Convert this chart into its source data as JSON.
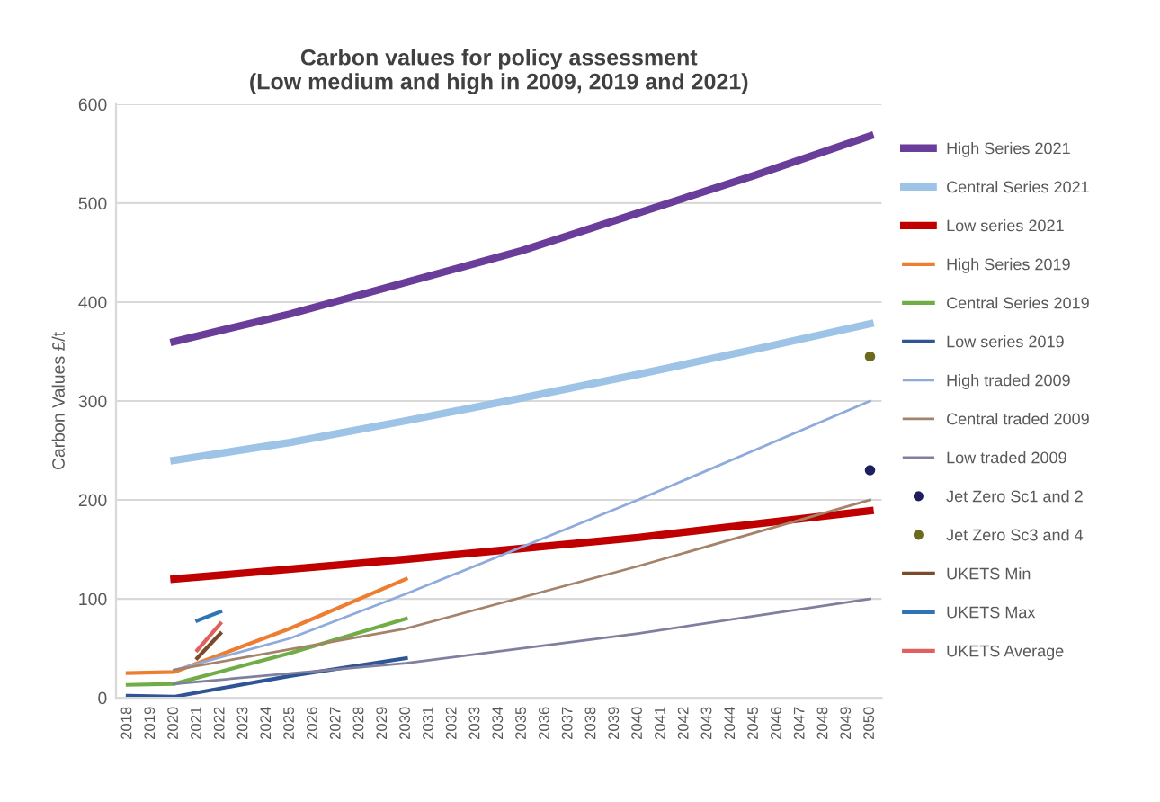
{
  "chart_data": {
    "type": "line",
    "title": "Carbon values for policy assessment\n(Low medium and high in 2009, 2019 and 2021)",
    "ylabel": "Carbon Values £/t",
    "xlim": [
      2017.5,
      2050.5
    ],
    "xticks": [
      2018,
      2019,
      2020,
      2021,
      2022,
      2023,
      2024,
      2025,
      2026,
      2027,
      2028,
      2029,
      2030,
      2031,
      2032,
      2033,
      2034,
      2035,
      2036,
      2037,
      2038,
      2039,
      2040,
      2041,
      2042,
      2043,
      2044,
      2045,
      2046,
      2047,
      2048,
      2049,
      2050
    ],
    "ylim": [
      0,
      600
    ],
    "yticks": [
      0,
      100,
      200,
      300,
      400,
      500,
      600
    ],
    "grid": "y",
    "legend": "right",
    "marker": "none",
    "line_style": "solid",
    "series": [
      {
        "name": "High Series 2021",
        "color": "#6a3d9a",
        "x": [
          2020,
          2025,
          2030,
          2035,
          2040,
          2045,
          2050
        ],
        "values": [
          360,
          388,
          420,
          452,
          490,
          528,
          568
        ]
      },
      {
        "name": "Central Series 2021",
        "color": "#9dc3e6",
        "x": [
          2020,
          2025,
          2030,
          2035,
          2040,
          2045,
          2050
        ],
        "values": [
          240,
          258,
          280,
          303,
          327,
          352,
          378
        ]
      },
      {
        "name": "Low series 2021",
        "color": "#c00000",
        "x": [
          2020,
          2030,
          2040,
          2050
        ],
        "values": [
          120,
          140,
          162,
          189
        ]
      },
      {
        "name": "High Series 2019",
        "color": "#ed7d31",
        "x": [
          2018,
          2020,
          2025,
          2030
        ],
        "values": [
          25,
          26,
          70,
          120
        ]
      },
      {
        "name": "Central Series 2019",
        "color": "#70ad47",
        "x": [
          2018,
          2020,
          2025,
          2030
        ],
        "values": [
          13,
          14,
          45,
          80
        ]
      },
      {
        "name": "Low series 2019",
        "color": "#2f5597",
        "x": [
          2018,
          2020,
          2025,
          2030
        ],
        "values": [
          2,
          1,
          22,
          40
        ]
      },
      {
        "name": "High traded 2009",
        "color": "#8faadc",
        "x": [
          2020,
          2025,
          2030,
          2040,
          2050
        ],
        "values": [
          28,
          60,
          105,
          200,
          300
        ]
      },
      {
        "name": "Central traded 2009",
        "color": "#a5826a",
        "x": [
          2020,
          2030,
          2040,
          2050
        ],
        "values": [
          28,
          70,
          133,
          200
        ]
      },
      {
        "name": "Low traded 2009",
        "color": "#7f7f9f",
        "x": [
          2020,
          2030,
          2040,
          2050
        ],
        "values": [
          14,
          35,
          65,
          100
        ]
      },
      {
        "name": "Jet Zero Sc1 and 2",
        "type": "scatter",
        "marker": "circle",
        "color": "#1f1f5f",
        "x": [
          2050
        ],
        "values": [
          230
        ]
      },
      {
        "name": "Jet Zero Sc3 and 4",
        "type": "scatter",
        "marker": "circle",
        "color": "#6b6b20",
        "x": [
          2050
        ],
        "values": [
          345
        ]
      },
      {
        "name": "UKETS Min",
        "color": "#7b4a2a",
        "x": [
          2021,
          2022
        ],
        "values": [
          40,
          65
        ]
      },
      {
        "name": "UKETS Max",
        "color": "#2e75b6",
        "x": [
          2021,
          2022
        ],
        "values": [
          78,
          87
        ]
      },
      {
        "name": "UKETS Average",
        "color": "#e06060",
        "x": [
          2021,
          2022
        ],
        "values": [
          48,
          75
        ]
      }
    ]
  }
}
